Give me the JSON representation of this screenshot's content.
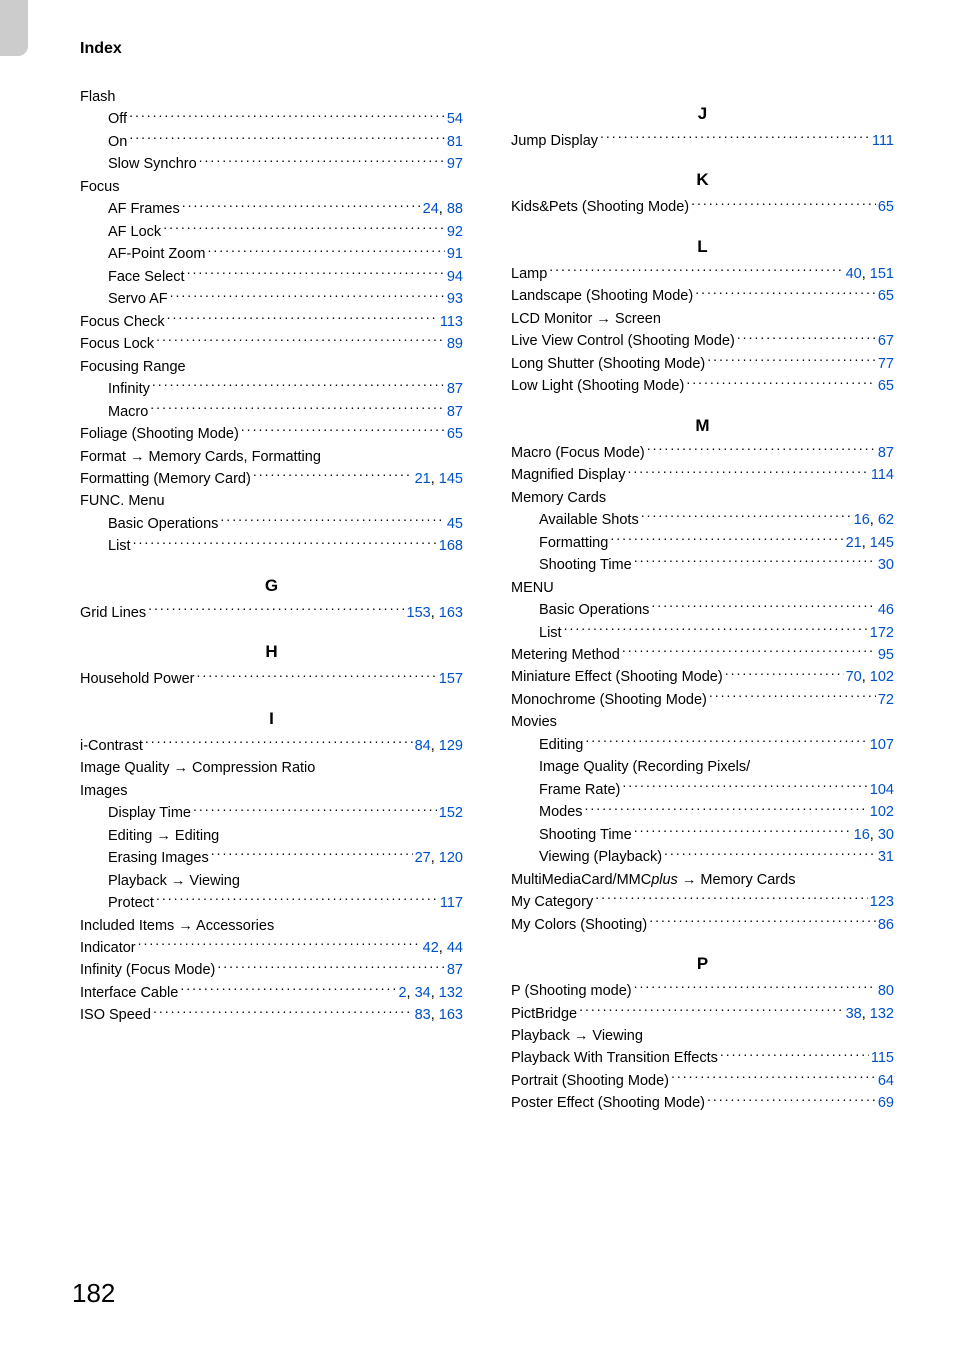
{
  "header": {
    "title": "Index"
  },
  "pageNumber": "182",
  "linkColor": "#0050c8",
  "left": [
    {
      "type": "noref",
      "label": "Flash"
    },
    {
      "type": "entry",
      "sub": true,
      "label": "Off",
      "pages": [
        "54"
      ]
    },
    {
      "type": "entry",
      "sub": true,
      "label": "On",
      "pages": [
        "81"
      ]
    },
    {
      "type": "entry",
      "sub": true,
      "label": "Slow Synchro",
      "pages": [
        "97"
      ]
    },
    {
      "type": "noref",
      "label": "Focus"
    },
    {
      "type": "entry",
      "sub": true,
      "label": "AF Frames",
      "pages": [
        "24",
        "88"
      ]
    },
    {
      "type": "entry",
      "sub": true,
      "label": "AF Lock",
      "pages": [
        "92"
      ]
    },
    {
      "type": "entry",
      "sub": true,
      "label": "AF-Point Zoom",
      "pages": [
        "91"
      ]
    },
    {
      "type": "entry",
      "sub": true,
      "label": "Face Select",
      "pages": [
        "94"
      ]
    },
    {
      "type": "entry",
      "sub": true,
      "label": "Servo AF",
      "pages": [
        "93"
      ]
    },
    {
      "type": "entry",
      "label": "Focus Check",
      "pages": [
        "113"
      ]
    },
    {
      "type": "entry",
      "label": "Focus Lock",
      "pages": [
        "89"
      ]
    },
    {
      "type": "noref",
      "label": "Focusing Range"
    },
    {
      "type": "entry",
      "sub": true,
      "label": "Infinity",
      "pages": [
        "87"
      ]
    },
    {
      "type": "entry",
      "sub": true,
      "label": "Macro",
      "pages": [
        "87"
      ]
    },
    {
      "type": "entry",
      "label": "Foliage (Shooting Mode)",
      "pages": [
        "65"
      ]
    },
    {
      "type": "noref",
      "label": "Format → Memory Cards, Formatting"
    },
    {
      "type": "entry",
      "label": "Formatting (Memory Card)",
      "pages": [
        "21",
        "145"
      ]
    },
    {
      "type": "noref",
      "label": "FUNC. Menu"
    },
    {
      "type": "entry",
      "sub": true,
      "label": "Basic Operations",
      "pages": [
        "45"
      ]
    },
    {
      "type": "entry",
      "sub": true,
      "label": "List",
      "pages": [
        "168"
      ]
    },
    {
      "type": "letter",
      "label": "G"
    },
    {
      "type": "entry",
      "label": "Grid Lines",
      "pages": [
        "153",
        "163"
      ]
    },
    {
      "type": "letter",
      "label": "H"
    },
    {
      "type": "entry",
      "label": "Household Power",
      "pages": [
        "157"
      ]
    },
    {
      "type": "letter",
      "label": "I"
    },
    {
      "type": "entry",
      "label": "i-Contrast",
      "pages": [
        "84",
        "129"
      ]
    },
    {
      "type": "noref",
      "label": "Image Quality → Compression Ratio"
    },
    {
      "type": "noref",
      "label": "Images"
    },
    {
      "type": "entry",
      "sub": true,
      "label": "Display Time",
      "pages": [
        "152"
      ]
    },
    {
      "type": "noref",
      "sub": true,
      "label": "Editing → Editing"
    },
    {
      "type": "entry",
      "sub": true,
      "label": "Erasing Images",
      "pages": [
        "27",
        "120"
      ]
    },
    {
      "type": "noref",
      "sub": true,
      "label": "Playback → Viewing"
    },
    {
      "type": "entry",
      "sub": true,
      "label": "Protect",
      "pages": [
        "117"
      ]
    },
    {
      "type": "noref",
      "label": "Included Items → Accessories"
    },
    {
      "type": "entry",
      "label": "Indicator",
      "pages": [
        "42",
        "44"
      ]
    },
    {
      "type": "entry",
      "label": "Infinity (Focus Mode)",
      "pages": [
        "87"
      ]
    },
    {
      "type": "entry",
      "label": "Interface Cable",
      "pages": [
        "2",
        "34",
        "132"
      ]
    },
    {
      "type": "entry",
      "label": "ISO Speed",
      "pages": [
        "83",
        "163"
      ]
    }
  ],
  "right": [
    {
      "type": "letter",
      "label": "J"
    },
    {
      "type": "entry",
      "label": "Jump Display",
      "pages": [
        "111"
      ]
    },
    {
      "type": "letter",
      "label": "K"
    },
    {
      "type": "entry",
      "label": "Kids&Pets (Shooting Mode)",
      "pages": [
        "65"
      ]
    },
    {
      "type": "letter",
      "label": "L"
    },
    {
      "type": "entry",
      "label": "Lamp",
      "pages": [
        "40",
        "151"
      ]
    },
    {
      "type": "entry",
      "label": "Landscape (Shooting Mode)",
      "pages": [
        "65"
      ]
    },
    {
      "type": "noref",
      "label": "LCD Monitor → Screen"
    },
    {
      "type": "entry",
      "label": "Live View Control (Shooting Mode)",
      "pages": [
        "67"
      ]
    },
    {
      "type": "entry",
      "label": "Long Shutter (Shooting Mode)",
      "pages": [
        "77"
      ]
    },
    {
      "type": "entry",
      "label": "Low Light (Shooting Mode)",
      "pages": [
        "65"
      ]
    },
    {
      "type": "letter",
      "label": "M"
    },
    {
      "type": "entry",
      "label": "Macro (Focus Mode)",
      "pages": [
        "87"
      ]
    },
    {
      "type": "entry",
      "label": "Magnified Display",
      "pages": [
        "114"
      ]
    },
    {
      "type": "noref",
      "label": "Memory Cards"
    },
    {
      "type": "entry",
      "sub": true,
      "label": "Available Shots",
      "pages": [
        "16",
        "62"
      ]
    },
    {
      "type": "entry",
      "sub": true,
      "label": "Formatting",
      "pages": [
        "21",
        "145"
      ]
    },
    {
      "type": "entry",
      "sub": true,
      "label": "Shooting Time",
      "pages": [
        "30"
      ]
    },
    {
      "type": "noref",
      "label": "MENU"
    },
    {
      "type": "entry",
      "sub": true,
      "label": "Basic Operations",
      "pages": [
        "46"
      ]
    },
    {
      "type": "entry",
      "sub": true,
      "label": "List",
      "pages": [
        "172"
      ]
    },
    {
      "type": "entry",
      "label": "Metering Method",
      "pages": [
        "95"
      ]
    },
    {
      "type": "entry",
      "label": "Miniature Effect (Shooting Mode)",
      "pages": [
        "70",
        "102"
      ]
    },
    {
      "type": "entry",
      "label": "Monochrome (Shooting Mode)",
      "pages": [
        "72"
      ]
    },
    {
      "type": "noref",
      "label": "Movies"
    },
    {
      "type": "entry",
      "sub": true,
      "label": "Editing",
      "pages": [
        "107"
      ]
    },
    {
      "type": "noref",
      "sub": true,
      "label": "Image Quality (Recording Pixels/"
    },
    {
      "type": "entry",
      "sub": true,
      "label": "Frame Rate)",
      "pages": [
        "104"
      ]
    },
    {
      "type": "entry",
      "sub": true,
      "label": "Modes",
      "pages": [
        "102"
      ]
    },
    {
      "type": "entry",
      "sub": true,
      "label": "Shooting Time",
      "pages": [
        "16",
        "30"
      ]
    },
    {
      "type": "entry",
      "sub": true,
      "label": "Viewing (Playback)",
      "pages": [
        "31"
      ]
    },
    {
      "type": "noref",
      "label_html": "MultiMediaCard/MMC<span class=\"italic\">plus</span> → Memory Cards"
    },
    {
      "type": "entry",
      "label": "My Category",
      "pages": [
        "123"
      ]
    },
    {
      "type": "entry",
      "label": "My Colors (Shooting)",
      "pages": [
        "86"
      ]
    },
    {
      "type": "letter",
      "label": "P"
    },
    {
      "type": "entry",
      "label": "P (Shooting mode)",
      "pages": [
        "80"
      ]
    },
    {
      "type": "entry",
      "label": "PictBridge",
      "pages": [
        "38",
        "132"
      ]
    },
    {
      "type": "noref",
      "label": "Playback → Viewing"
    },
    {
      "type": "entry",
      "label": "Playback With Transition Effects",
      "pages": [
        "115"
      ]
    },
    {
      "type": "entry",
      "label": "Portrait (Shooting Mode)",
      "pages": [
        "64"
      ]
    },
    {
      "type": "entry",
      "label": "Poster Effect (Shooting Mode)",
      "pages": [
        "69"
      ]
    }
  ]
}
